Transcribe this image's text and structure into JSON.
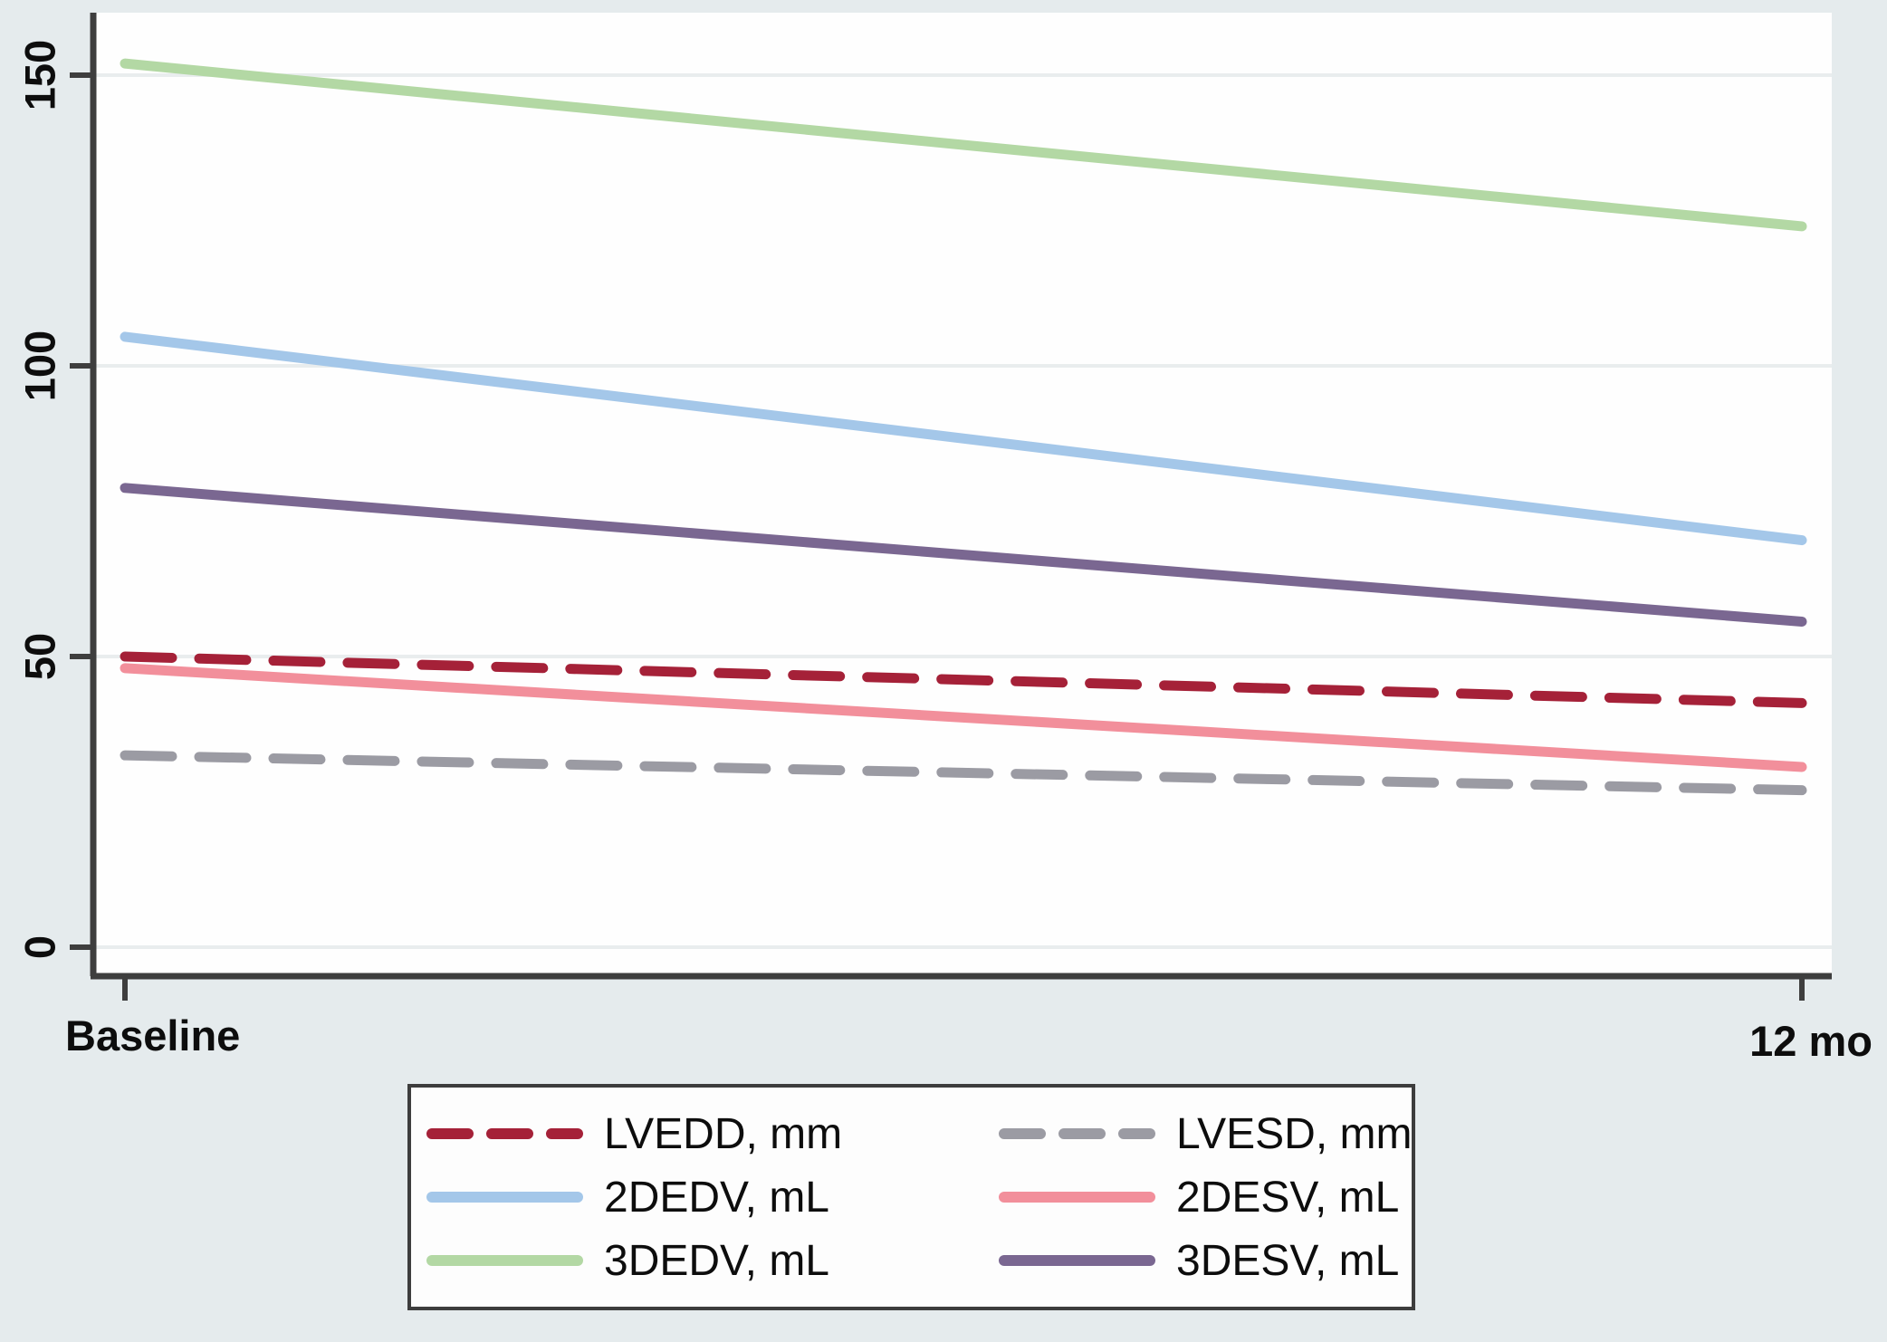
{
  "figure": {
    "background": "#e5ebed",
    "plot_background": "#fefefe",
    "axis_color": "#3e3e3e",
    "grid_color": "#e9edee",
    "text_color": "#0d0d0d",
    "legend_border_color": "#3d3d3d"
  },
  "chart_data": {
    "type": "line",
    "title": "",
    "xlabel": "",
    "ylabel": "",
    "x_categories": [
      "Baseline",
      "12 mo"
    ],
    "y_ticks": [
      0,
      50,
      100,
      150
    ],
    "ylim": [
      0,
      161
    ],
    "grid": true,
    "legend_position": "bottom-center",
    "series": [
      {
        "name": "LVEDD, mm",
        "style": "dashed",
        "color": "#a52138",
        "values": [
          50,
          42
        ]
      },
      {
        "name": "2DEDV, mL",
        "style": "solid",
        "color": "#a4c7e9",
        "values": [
          105,
          70
        ]
      },
      {
        "name": "3DEDV, mL",
        "style": "solid",
        "color": "#b3d8a4",
        "values": [
          152,
          124
        ]
      },
      {
        "name": "LVESD, mm",
        "style": "dashed",
        "color": "#9b9ba3",
        "values": [
          33,
          27
        ]
      },
      {
        "name": "2DESV, mL",
        "style": "solid",
        "color": "#f28f9b",
        "values": [
          48,
          31
        ]
      },
      {
        "name": "3DESV, mL",
        "style": "solid",
        "color": "#7a6791",
        "values": [
          79,
          56
        ]
      }
    ]
  }
}
